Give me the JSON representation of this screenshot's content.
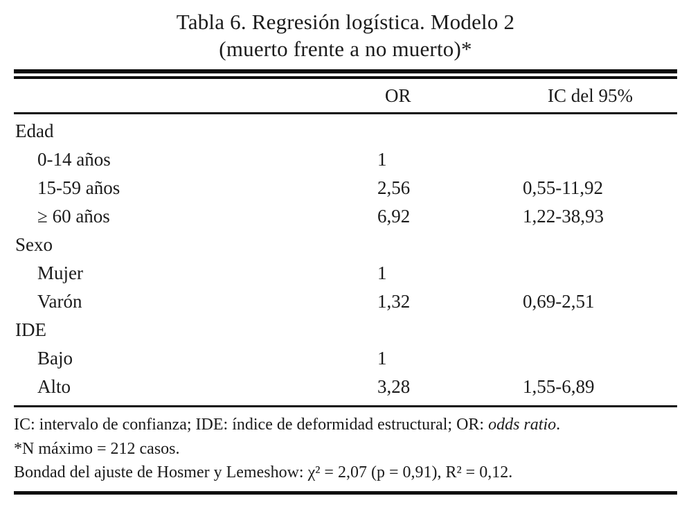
{
  "title": {
    "line1": "Tabla 6. Regresión logística. Modelo 2",
    "line2": "(muerto frente a no muerto)*"
  },
  "table": {
    "col_or": "OR",
    "col_ic": "IC del 95%",
    "rows": [
      {
        "label": "Edad",
        "or": "",
        "ic": ""
      },
      {
        "label": "0-14 años",
        "or": "1",
        "ic": ""
      },
      {
        "label": "15-59 años",
        "or": "2,56",
        "ic": "0,55-11,92"
      },
      {
        "label": "≥ 60 años",
        "or": "6,92",
        "ic": "1,22-38,93"
      },
      {
        "label": "Sexo",
        "or": "",
        "ic": ""
      },
      {
        "label": "Mujer",
        "or": "1",
        "ic": ""
      },
      {
        "label": "Varón",
        "or": "1,32",
        "ic": "0,69-2,51"
      },
      {
        "label": "IDE",
        "or": "",
        "ic": ""
      },
      {
        "label": "Bajo",
        "or": "1",
        "ic": ""
      },
      {
        "label": "Alto",
        "or": "3,28",
        "ic": "1,55-6,89"
      }
    ]
  },
  "footnotes": {
    "note1_prefix": "IC: intervalo de confianza; IDE: índice de deformidad estructural; OR: ",
    "note1_italic": "odds ratio",
    "note1_suffix": ".",
    "note2": "*N máximo = 212 casos.",
    "note3": "Bondad del ajuste de Hosmer y Lemeshow: χ² = 2,07 (p = 0,91), R² = 0,12."
  }
}
